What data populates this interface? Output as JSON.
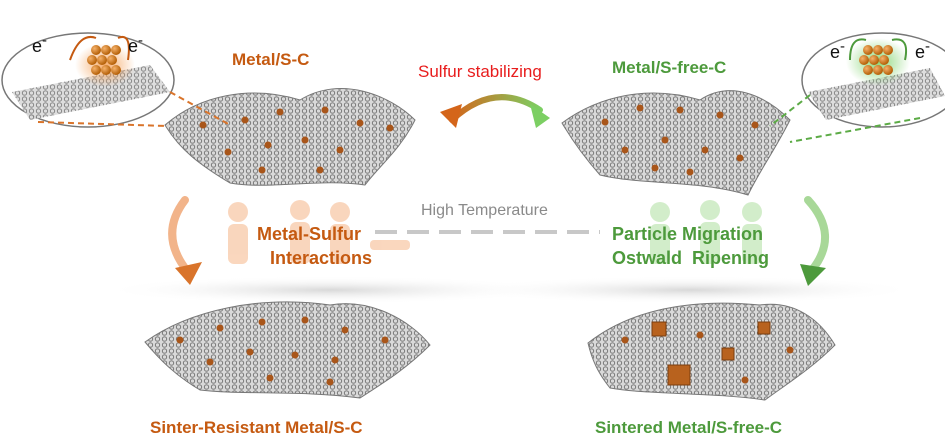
{
  "labels": {
    "top_left": "Metal/S-C",
    "top_right": "Metal/S-free-C",
    "center_arrow": "Sulfur stabilizing",
    "mid_left_line1": "Metal-Sulfur",
    "mid_left_line2": "Interactions",
    "mid_right_line1": "Particle Migration",
    "mid_right_line2": "Ostwald  Ripening",
    "middle": "High Temperature",
    "bottom_left": "Sinter-Resistant Metal/S-C",
    "bottom_right": "Sintered Metal/S-free-C",
    "electron": "e",
    "electron_sup": "-"
  },
  "colors": {
    "orange": "#c55a11",
    "green": "#4d9a3c",
    "red": "#e81d1d",
    "grey": "#8a8a8a"
  }
}
